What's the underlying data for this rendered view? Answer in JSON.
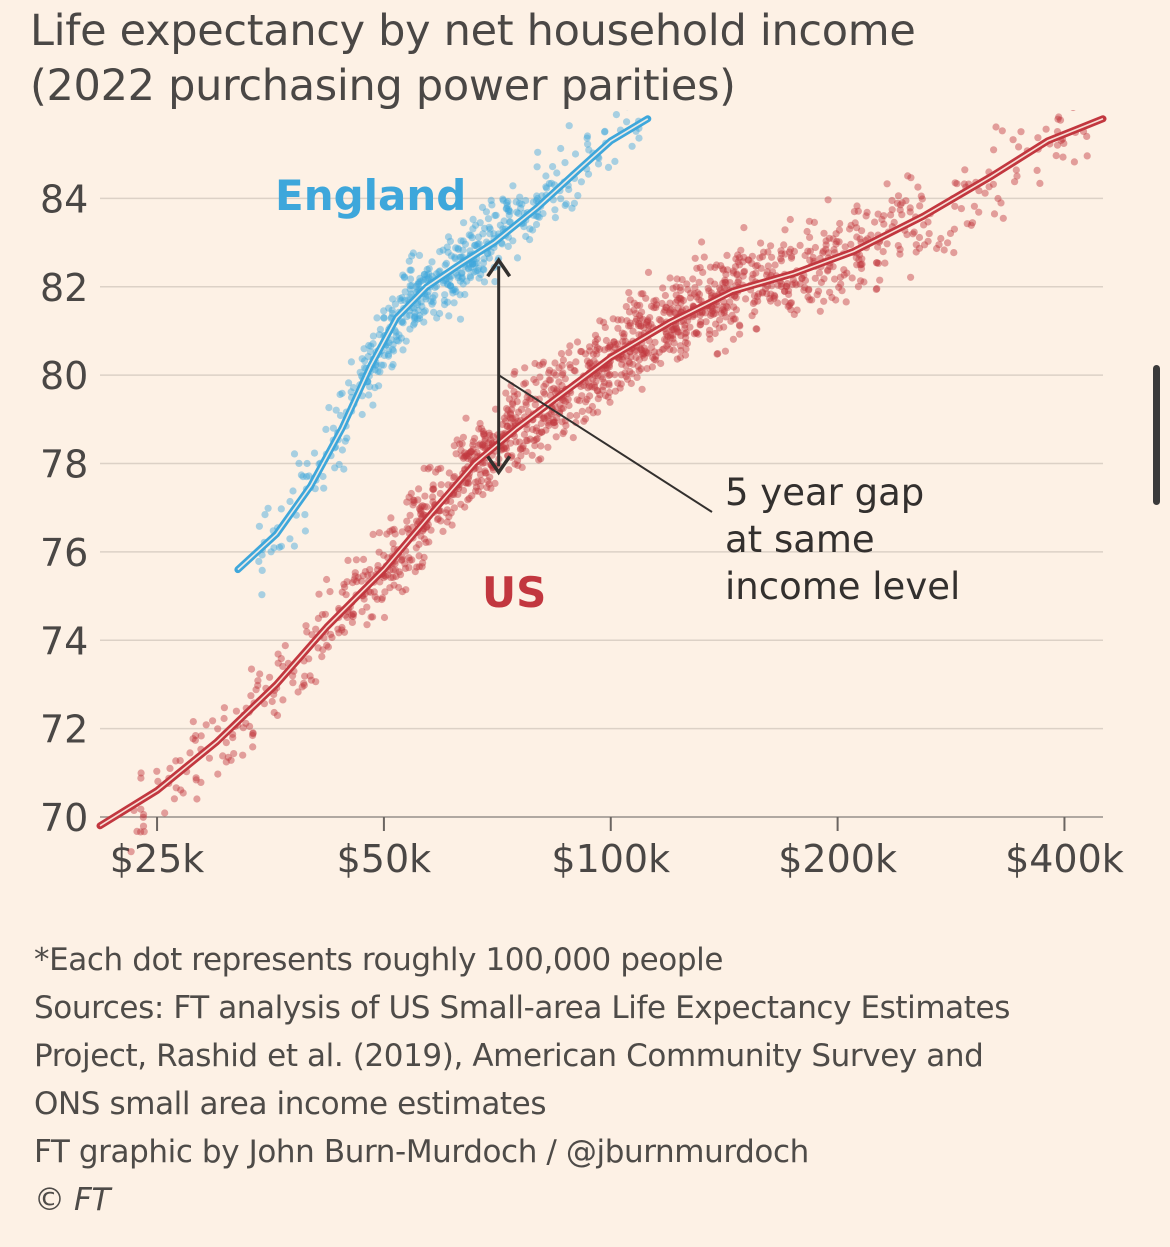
{
  "chart_data": {
    "type": "scatter",
    "title": "Life expectancy by net household income",
    "subtitle": "(2022 purchasing power parities)",
    "x_scale": "log",
    "x_ticks": [
      {
        "value": 25000,
        "label": "$25k"
      },
      {
        "value": 50000,
        "label": "$50k"
      },
      {
        "value": 100000,
        "label": "$100k"
      },
      {
        "value": 200000,
        "label": "$200k"
      },
      {
        "value": 400000,
        "label": "$400k"
      }
    ],
    "xlim": [
      21000,
      450000
    ],
    "ylim": [
      70,
      86
    ],
    "y_ticks": [
      70,
      72,
      74,
      76,
      78,
      80,
      82,
      84
    ],
    "grid": true,
    "series": [
      {
        "name": "England",
        "color": "#3ea7db",
        "trend": [
          {
            "x": 32000,
            "y": 75.6
          },
          {
            "x": 36000,
            "y": 76.4
          },
          {
            "x": 40000,
            "y": 77.5
          },
          {
            "x": 44000,
            "y": 78.8
          },
          {
            "x": 48000,
            "y": 80.2
          },
          {
            "x": 52000,
            "y": 81.3
          },
          {
            "x": 57000,
            "y": 82.0
          },
          {
            "x": 63000,
            "y": 82.5
          },
          {
            "x": 70000,
            "y": 83.0
          },
          {
            "x": 80000,
            "y": 83.8
          },
          {
            "x": 90000,
            "y": 84.6
          },
          {
            "x": 100000,
            "y": 85.3
          },
          {
            "x": 112000,
            "y": 85.8
          }
        ],
        "scatter_count": 520,
        "scatter_x_range": [
          34000,
          110000
        ],
        "scatter_spread": 0.45
      },
      {
        "name": "US",
        "color": "#c2373f",
        "trend": [
          {
            "x": 21000,
            "y": 69.8
          },
          {
            "x": 25000,
            "y": 70.6
          },
          {
            "x": 30000,
            "y": 71.7
          },
          {
            "x": 36000,
            "y": 73.0
          },
          {
            "x": 42000,
            "y": 74.3
          },
          {
            "x": 50000,
            "y": 75.6
          },
          {
            "x": 58000,
            "y": 76.9
          },
          {
            "x": 66000,
            "y": 78.0
          },
          {
            "x": 75000,
            "y": 78.8
          },
          {
            "x": 85000,
            "y": 79.5
          },
          {
            "x": 100000,
            "y": 80.4
          },
          {
            "x": 120000,
            "y": 81.2
          },
          {
            "x": 145000,
            "y": 81.9
          },
          {
            "x": 175000,
            "y": 82.3
          },
          {
            "x": 210000,
            "y": 82.8
          },
          {
            "x": 260000,
            "y": 83.6
          },
          {
            "x": 320000,
            "y": 84.5
          },
          {
            "x": 380000,
            "y": 85.3
          },
          {
            "x": 450000,
            "y": 85.8
          }
        ],
        "scatter_count": 1500,
        "scatter_x_range": [
          23000,
          430000
        ],
        "scatter_spread": 0.5
      }
    ],
    "series_labels": {
      "england": "England",
      "us": "US"
    },
    "annotation": {
      "lines": [
        "5 year gap",
        "at same",
        "income level"
      ],
      "gap_income": 71000,
      "gap_top": 82.6,
      "gap_bottom": 77.8,
      "pointer_from_y": 80.0
    }
  },
  "notes": {
    "line1": "*Each dot represents roughly 100,000 people",
    "line2": "Sources: FT analysis of US Small-area Life Expectancy Estimates",
    "line3": "Project, Rashid et al. (2019), American Community Survey and",
    "line4": "ONS small area income estimates",
    "line5": "FT graphic by John Burn-Murdoch / @jburnmurdoch",
    "copyright": "© FT"
  }
}
